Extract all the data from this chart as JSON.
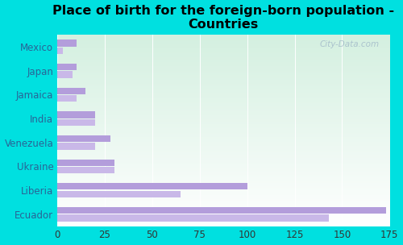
{
  "title": "Place of birth for the foreign-born population -\nCountries",
  "categories": [
    "Ecuador",
    "Liberia",
    "Ukraine",
    "Venezuela",
    "India",
    "Jamaica",
    "Japan",
    "Mexico"
  ],
  "values1": [
    173,
    100,
    30,
    28,
    20,
    15,
    10,
    10
  ],
  "values2": [
    143,
    65,
    30,
    20,
    20,
    10,
    8,
    3
  ],
  "bar_color1": "#b39ddb",
  "bar_color2": "#c9b8e8",
  "background_outer": "#00e0e0",
  "background_plot_top": "#d4f0e0",
  "background_plot_bottom": "#ffffff",
  "xlim": [
    0,
    175
  ],
  "xticks": [
    0,
    25,
    50,
    75,
    100,
    125,
    150,
    175
  ],
  "watermark": "City-Data.com",
  "title_fontsize": 11.5,
  "tick_fontsize": 8.5,
  "label_fontsize": 8.5
}
